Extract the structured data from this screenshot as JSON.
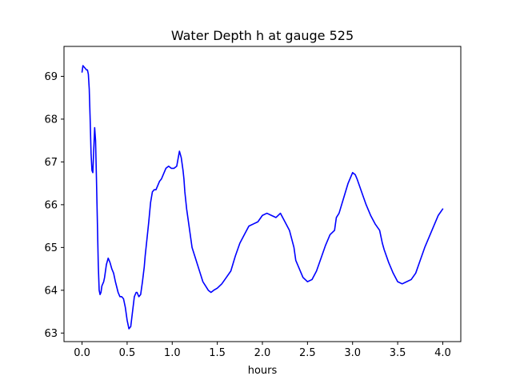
{
  "chart_data": {
    "type": "line",
    "title": "Water Depth h at gauge 525",
    "xlabel": "hours",
    "ylabel": "",
    "xlim": [
      -0.2,
      4.2
    ],
    "ylim": [
      62.8,
      69.7
    ],
    "xticks": [
      0.0,
      0.5,
      1.0,
      1.5,
      2.0,
      2.5,
      3.0,
      3.5,
      4.0
    ],
    "xtick_labels": [
      "0.0",
      "0.5",
      "1.0",
      "1.5",
      "2.0",
      "2.5",
      "3.0",
      "3.5",
      "4.0"
    ],
    "yticks": [
      63,
      64,
      65,
      66,
      67,
      68,
      69
    ],
    "ytick_labels": [
      "63",
      "64",
      "65",
      "66",
      "67",
      "68",
      "69"
    ],
    "grid": false,
    "series": [
      {
        "color": "#0000ff",
        "x": [
          0.0,
          0.01,
          0.03,
          0.05,
          0.06,
          0.07,
          0.08,
          0.09,
          0.1,
          0.11,
          0.12,
          0.13,
          0.14,
          0.15,
          0.16,
          0.17,
          0.18,
          0.19,
          0.2,
          0.21,
          0.22,
          0.23,
          0.24,
          0.25,
          0.27,
          0.29,
          0.31,
          0.33,
          0.35,
          0.37,
          0.4,
          0.42,
          0.44,
          0.46,
          0.48,
          0.5,
          0.52,
          0.54,
          0.56,
          0.58,
          0.6,
          0.61,
          0.63,
          0.65,
          0.67,
          0.69,
          0.7,
          0.72,
          0.74,
          0.76,
          0.78,
          0.8,
          0.82,
          0.84,
          0.86,
          0.88,
          0.9,
          0.93,
          0.96,
          0.99,
          1.02,
          1.05,
          1.08,
          1.1,
          1.12,
          1.13,
          1.14,
          1.16,
          1.18,
          1.2,
          1.22,
          1.25,
          1.28,
          1.31,
          1.34,
          1.37,
          1.4,
          1.43,
          1.46,
          1.5,
          1.55,
          1.6,
          1.65,
          1.7,
          1.75,
          1.8,
          1.85,
          1.9,
          1.95,
          2.0,
          2.05,
          2.1,
          2.15,
          2.2,
          2.25,
          2.3,
          2.35,
          2.37,
          2.4,
          2.45,
          2.5,
          2.55,
          2.6,
          2.65,
          2.7,
          2.75,
          2.8,
          2.82,
          2.85,
          2.9,
          2.95,
          3.0,
          3.03,
          3.05,
          3.1,
          3.15,
          3.2,
          3.25,
          3.3,
          3.33,
          3.35,
          3.4,
          3.45,
          3.5,
          3.55,
          3.6,
          3.65,
          3.7,
          3.75,
          3.8,
          3.85,
          3.9,
          3.95,
          4.0
        ],
        "y": [
          69.1,
          69.25,
          69.2,
          69.15,
          69.15,
          69.05,
          68.7,
          68.0,
          67.2,
          66.8,
          66.75,
          67.3,
          67.8,
          67.5,
          66.6,
          65.6,
          64.6,
          64.0,
          63.9,
          63.95,
          64.1,
          64.15,
          64.2,
          64.3,
          64.6,
          64.75,
          64.65,
          64.5,
          64.4,
          64.2,
          63.95,
          63.85,
          63.85,
          63.8,
          63.6,
          63.3,
          63.1,
          63.15,
          63.5,
          63.85,
          63.95,
          63.95,
          63.85,
          63.9,
          64.2,
          64.55,
          64.8,
          65.2,
          65.6,
          66.05,
          66.3,
          66.35,
          66.35,
          66.45,
          66.55,
          66.6,
          66.7,
          66.85,
          66.9,
          66.85,
          66.85,
          66.9,
          67.25,
          67.1,
          66.8,
          66.6,
          66.3,
          65.9,
          65.6,
          65.3,
          65.0,
          64.8,
          64.6,
          64.4,
          64.2,
          64.1,
          64.0,
          63.95,
          64.0,
          64.05,
          64.15,
          64.3,
          64.45,
          64.8,
          65.1,
          65.3,
          65.5,
          65.55,
          65.6,
          65.75,
          65.8,
          65.75,
          65.7,
          65.8,
          65.6,
          65.4,
          65.0,
          64.7,
          64.55,
          64.3,
          64.2,
          64.25,
          64.45,
          64.75,
          65.05,
          65.3,
          65.4,
          65.7,
          65.8,
          66.15,
          66.5,
          66.75,
          66.7,
          66.6,
          66.3,
          66.0,
          65.75,
          65.55,
          65.4,
          65.1,
          64.95,
          64.65,
          64.4,
          64.2,
          64.15,
          64.2,
          64.25,
          64.4,
          64.7,
          65.0,
          65.25,
          65.5,
          65.75,
          65.9
        ]
      }
    ]
  }
}
